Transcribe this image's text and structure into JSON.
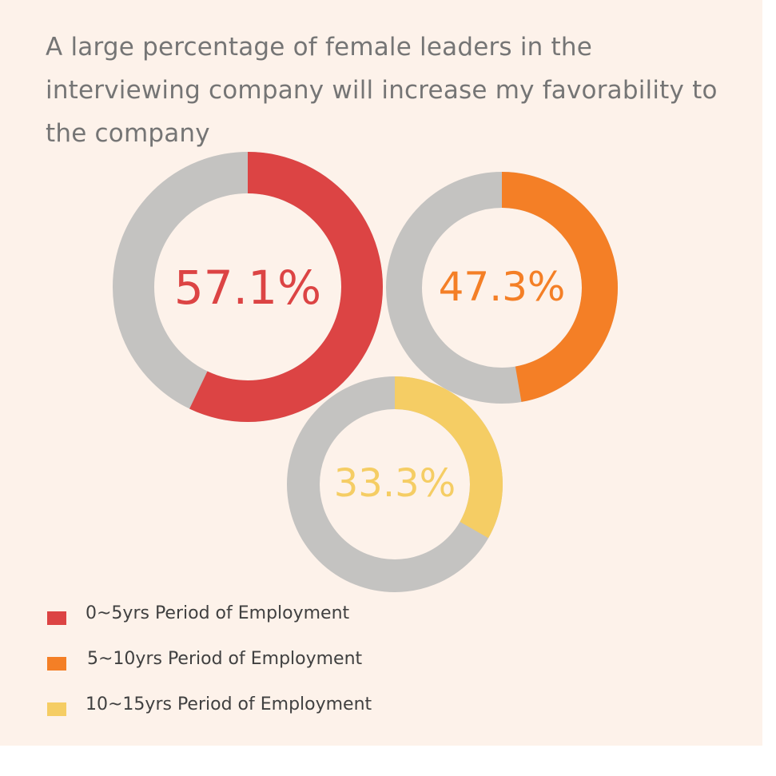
{
  "title": "A large percentage of female leaders in the interviewing company will increase my favorability to the company",
  "colors": {
    "background": "#fdf2ea",
    "remainder": "#c4c3c1"
  },
  "chart_data": {
    "type": "donut",
    "title": "A large percentage of female leaders in the interviewing company will increase my favorability to the company",
    "unit": "%",
    "series": [
      {
        "name": "0~5yrs Period of Employment",
        "value": 57.1,
        "label": "57.1%",
        "color": "#dc4444"
      },
      {
        "name": "5~10yrs Period of Employment",
        "value": 47.3,
        "label": "47.3%",
        "color": "#f47f26"
      },
      {
        "name": "10~15yrs Period of Employment",
        "value": 33.3,
        "label": "33.3%",
        "color": "#f5cd64"
      }
    ]
  }
}
